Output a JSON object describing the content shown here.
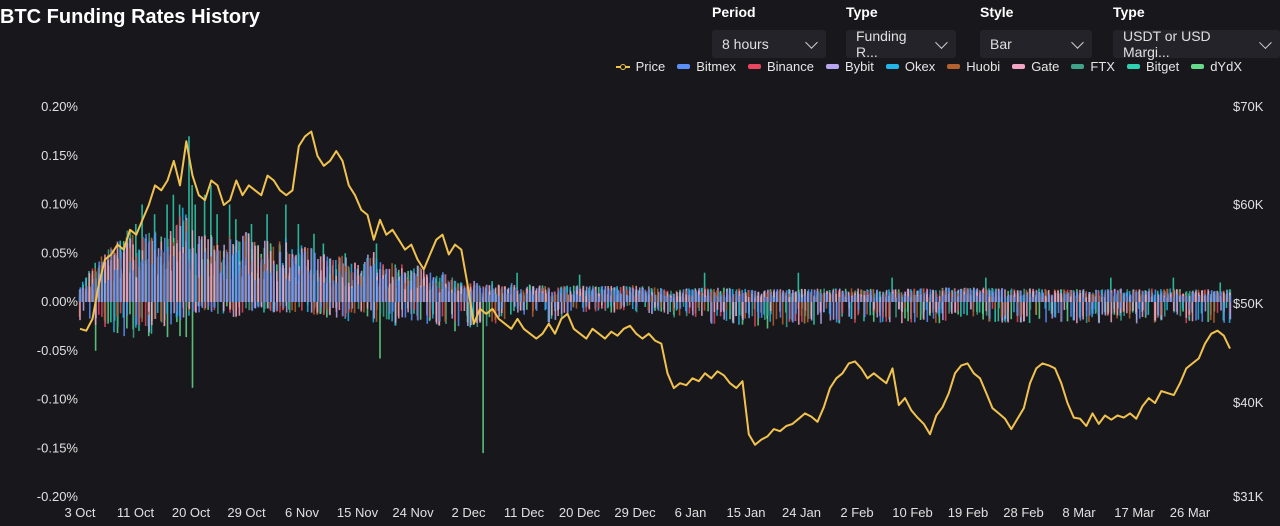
{
  "header": {
    "title": "BTC Funding Rates History"
  },
  "controls": [
    {
      "label": "Period",
      "value": "8 hours"
    },
    {
      "label": "Type",
      "value": "Funding R..."
    },
    {
      "label": "Style",
      "value": "Bar"
    },
    {
      "label": "Type",
      "value": "USDT or USD Margi..."
    }
  ],
  "colors": {
    "price": "#f2c24f",
    "Bitmex": "#5b8ff9",
    "Binance": "#e8475f",
    "Bybit": "#b9a6f0",
    "Okex": "#1fb6e8",
    "Huobi": "#b5602f",
    "Gate": "#f2a5c0",
    "FTX": "#3fa38a",
    "Bitget": "#2ed1b0",
    "dYdX": "#66d98a"
  },
  "chart_data": {
    "type": "bar",
    "title": "BTC Funding Rates History",
    "legend_position": "top-right",
    "grid": false,
    "x_ticks": [
      "3 Oct",
      "11 Oct",
      "20 Oct",
      "29 Oct",
      "6 Nov",
      "15 Nov",
      "24 Nov",
      "2 Dec",
      "11 Dec",
      "20 Dec",
      "29 Dec",
      "6 Jan",
      "15 Jan",
      "24 Jan",
      "2 Feb",
      "10 Feb",
      "19 Feb",
      "28 Feb",
      "8 Mar",
      "17 Mar",
      "26 Mar"
    ],
    "y_left": {
      "ticks": [
        "0.20%",
        "0.15%",
        "0.10%",
        "0.05%",
        "0.00%",
        "-0.05%",
        "-0.10%",
        "-0.15%",
        "-0.20%"
      ],
      "range": [
        -0.2,
        0.2
      ],
      "unit": "%"
    },
    "y_right": {
      "ticks": [
        "$70K",
        "$60K",
        "$50K",
        "$40K",
        "$31K"
      ],
      "range": [
        31000,
        70000
      ]
    },
    "series_names": [
      "Price",
      "Bitmex",
      "Binance",
      "Bybit",
      "Okex",
      "Huobi",
      "Gate",
      "FTX",
      "Bitget",
      "dYdX"
    ],
    "price": {
      "name": "Price",
      "points": [
        [
          0,
          47500
        ],
        [
          2,
          47300
        ],
        [
          4,
          48500
        ],
        [
          6,
          52000
        ],
        [
          8,
          54500
        ],
        [
          10,
          55000
        ],
        [
          12,
          56000
        ],
        [
          14,
          55500
        ],
        [
          16,
          57500
        ],
        [
          18,
          57000
        ],
        [
          20,
          58500
        ],
        [
          22,
          60000
        ],
        [
          24,
          62000
        ],
        [
          26,
          61500
        ],
        [
          28,
          62500
        ],
        [
          30,
          64500
        ],
        [
          32,
          62000
        ],
        [
          34,
          66500
        ],
        [
          36,
          63000
        ],
        [
          38,
          61000
        ],
        [
          40,
          60500
        ],
        [
          42,
          62500
        ],
        [
          44,
          62000
        ],
        [
          46,
          60000
        ],
        [
          48,
          60500
        ],
        [
          50,
          62500
        ],
        [
          52,
          61000
        ],
        [
          54,
          62000
        ],
        [
          56,
          61500
        ],
        [
          58,
          61000
        ],
        [
          60,
          63000
        ],
        [
          62,
          62500
        ],
        [
          64,
          61500
        ],
        [
          66,
          61000
        ],
        [
          68,
          61500
        ],
        [
          70,
          66000
        ],
        [
          72,
          67000
        ],
        [
          74,
          67500
        ],
        [
          76,
          65000
        ],
        [
          78,
          64000
        ],
        [
          80,
          64500
        ],
        [
          82,
          65500
        ],
        [
          84,
          64500
        ],
        [
          86,
          62000
        ],
        [
          88,
          61000
        ],
        [
          90,
          59500
        ],
        [
          92,
          59000
        ],
        [
          94,
          56500
        ],
        [
          96,
          58500
        ],
        [
          98,
          57000
        ],
        [
          100,
          57500
        ],
        [
          102,
          56500
        ],
        [
          104,
          55500
        ],
        [
          106,
          56000
        ],
        [
          108,
          54500
        ],
        [
          110,
          53500
        ],
        [
          112,
          55000
        ],
        [
          114,
          56500
        ],
        [
          116,
          57000
        ],
        [
          118,
          55000
        ],
        [
          120,
          56000
        ],
        [
          122,
          55500
        ],
        [
          124,
          52000
        ],
        [
          126,
          48000
        ],
        [
          128,
          49500
        ],
        [
          130,
          49000
        ],
        [
          132,
          49500
        ],
        [
          134,
          48500
        ],
        [
          136,
          48000
        ],
        [
          138,
          47500
        ],
        [
          140,
          48500
        ],
        [
          142,
          47500
        ],
        [
          144,
          47000
        ],
        [
          146,
          46500
        ],
        [
          148,
          47000
        ],
        [
          150,
          48000
        ],
        [
          152,
          47000
        ],
        [
          154,
          48500
        ],
        [
          156,
          49000
        ],
        [
          158,
          47500
        ],
        [
          160,
          47000
        ],
        [
          162,
          46500
        ],
        [
          164,
          47500
        ],
        [
          166,
          47000
        ],
        [
          168,
          46500
        ],
        [
          170,
          47200
        ],
        [
          172,
          46800
        ],
        [
          174,
          47500
        ],
        [
          176,
          47800
        ],
        [
          178,
          47000
        ],
        [
          180,
          46500
        ],
        [
          182,
          47000
        ],
        [
          184,
          46300
        ],
        [
          186,
          46000
        ],
        [
          188,
          43000
        ],
        [
          190,
          41500
        ],
        [
          192,
          42000
        ],
        [
          194,
          41800
        ],
        [
          196,
          42500
        ],
        [
          198,
          42200
        ],
        [
          200,
          43000
        ],
        [
          202,
          42500
        ],
        [
          204,
          43200
        ],
        [
          206,
          42800
        ],
        [
          208,
          42000
        ],
        [
          210,
          41500
        ],
        [
          212,
          42200
        ],
        [
          214,
          37000
        ],
        [
          216,
          36000
        ],
        [
          218,
          36500
        ],
        [
          220,
          36800
        ],
        [
          222,
          37500
        ],
        [
          224,
          37300
        ],
        [
          226,
          37800
        ],
        [
          228,
          38000
        ],
        [
          230,
          38500
        ],
        [
          232,
          39000
        ],
        [
          234,
          38700
        ],
        [
          236,
          38200
        ],
        [
          238,
          39600
        ],
        [
          240,
          41500
        ],
        [
          242,
          42500
        ],
        [
          244,
          43000
        ],
        [
          246,
          44000
        ],
        [
          248,
          44200
        ],
        [
          250,
          43500
        ],
        [
          252,
          42500
        ],
        [
          254,
          43000
        ],
        [
          256,
          42500
        ],
        [
          258,
          42000
        ],
        [
          260,
          43500
        ],
        [
          262,
          39800
        ],
        [
          264,
          40500
        ],
        [
          266,
          39300
        ],
        [
          268,
          38600
        ],
        [
          270,
          38000
        ],
        [
          272,
          37000
        ],
        [
          274,
          38800
        ],
        [
          276,
          39600
        ],
        [
          278,
          41000
        ],
        [
          280,
          43000
        ],
        [
          282,
          43800
        ],
        [
          284,
          44000
        ],
        [
          286,
          43000
        ],
        [
          288,
          42500
        ],
        [
          290,
          41000
        ],
        [
          292,
          39500
        ],
        [
          294,
          39000
        ],
        [
          296,
          38500
        ],
        [
          298,
          37500
        ],
        [
          300,
          38500
        ],
        [
          302,
          39500
        ],
        [
          304,
          42000
        ],
        [
          306,
          43500
        ],
        [
          308,
          44000
        ],
        [
          310,
          43800
        ],
        [
          312,
          43500
        ],
        [
          314,
          42000
        ],
        [
          316,
          40000
        ],
        [
          318,
          38600
        ],
        [
          320,
          38500
        ],
        [
          322,
          37800
        ],
        [
          324,
          39000
        ],
        [
          326,
          38000
        ],
        [
          328,
          38800
        ],
        [
          330,
          38400
        ],
        [
          332,
          38800
        ],
        [
          334,
          38600
        ],
        [
          336,
          39000
        ],
        [
          338,
          38500
        ],
        [
          340,
          39700
        ],
        [
          342,
          40500
        ],
        [
          344,
          40000
        ],
        [
          346,
          41200
        ],
        [
          348,
          41000
        ],
        [
          350,
          40800
        ],
        [
          352,
          42000
        ],
        [
          354,
          43500
        ],
        [
          356,
          44000
        ],
        [
          358,
          44500
        ],
        [
          360,
          46000
        ],
        [
          362,
          47000
        ],
        [
          364,
          47300
        ],
        [
          366,
          46800
        ],
        [
          368,
          45500
        ]
      ]
    },
    "funding_rates": {
      "unit": "%",
      "note_exchanges": [
        "Bitmex",
        "Binance",
        "Bybit",
        "Okex",
        "Huobi",
        "Gate",
        "FTX",
        "Bitget",
        "dYdX"
      ],
      "periods": 369,
      "pos_envelope": [
        [
          0,
          0.015
        ],
        [
          3,
          0.03
        ],
        [
          6,
          0.04
        ],
        [
          9,
          0.05
        ],
        [
          12,
          0.06
        ],
        [
          15,
          0.07
        ],
        [
          18,
          0.06
        ],
        [
          21,
          0.065
        ],
        [
          24,
          0.075
        ],
        [
          27,
          0.06
        ],
        [
          30,
          0.07
        ],
        [
          33,
          0.09
        ],
        [
          36,
          0.07
        ],
        [
          39,
          0.065
        ],
        [
          42,
          0.07
        ],
        [
          45,
          0.05
        ],
        [
          48,
          0.065
        ],
        [
          51,
          0.06
        ],
        [
          54,
          0.07
        ],
        [
          57,
          0.055
        ],
        [
          60,
          0.06
        ],
        [
          63,
          0.055
        ],
        [
          66,
          0.06
        ],
        [
          69,
          0.05
        ],
        [
          72,
          0.055
        ],
        [
          75,
          0.05
        ],
        [
          78,
          0.045
        ],
        [
          81,
          0.04
        ],
        [
          84,
          0.045
        ],
        [
          87,
          0.04
        ],
        [
          90,
          0.035
        ],
        [
          93,
          0.05
        ],
        [
          96,
          0.04
        ],
        [
          99,
          0.035
        ],
        [
          102,
          0.04
        ],
        [
          105,
          0.03
        ],
        [
          108,
          0.035
        ],
        [
          111,
          0.03
        ],
        [
          114,
          0.025
        ],
        [
          117,
          0.03
        ],
        [
          120,
          0.02
        ],
        [
          123,
          0.018
        ],
        [
          126,
          0.02
        ],
        [
          129,
          0.015
        ],
        [
          132,
          0.02
        ],
        [
          135,
          0.015
        ],
        [
          138,
          0.018
        ],
        [
          141,
          0.015
        ],
        [
          144,
          0.017
        ],
        [
          150,
          0.015
        ],
        [
          160,
          0.016
        ],
        [
          170,
          0.015
        ],
        [
          180,
          0.016
        ],
        [
          190,
          0.012
        ],
        [
          200,
          0.014
        ],
        [
          220,
          0.012
        ],
        [
          240,
          0.013
        ],
        [
          260,
          0.012
        ],
        [
          280,
          0.014
        ],
        [
          300,
          0.013
        ],
        [
          320,
          0.012
        ],
        [
          340,
          0.013
        ],
        [
          368,
          0.012
        ]
      ],
      "neg_envelope": [
        [
          0,
          -0.02
        ],
        [
          10,
          -0.03
        ],
        [
          20,
          -0.035
        ],
        [
          30,
          -0.02
        ],
        [
          40,
          -0.01
        ],
        [
          50,
          -0.015
        ],
        [
          60,
          -0.01
        ],
        [
          70,
          -0.01
        ],
        [
          80,
          -0.015
        ],
        [
          90,
          -0.02
        ],
        [
          100,
          -0.025
        ],
        [
          110,
          -0.02
        ],
        [
          120,
          -0.025
        ],
        [
          130,
          -0.025
        ],
        [
          140,
          -0.01
        ],
        [
          150,
          -0.02
        ],
        [
          160,
          -0.01
        ],
        [
          170,
          -0.01
        ],
        [
          180,
          -0.01
        ],
        [
          190,
          -0.015
        ],
        [
          200,
          -0.02
        ],
        [
          220,
          -0.025
        ],
        [
          240,
          -0.02
        ],
        [
          260,
          -0.02
        ],
        [
          280,
          -0.02
        ],
        [
          300,
          -0.02
        ],
        [
          320,
          -0.02
        ],
        [
          340,
          -0.02
        ],
        [
          368,
          -0.02
        ]
      ],
      "spikes": [
        [
          35,
          0.17
        ],
        [
          36,
          0.12
        ],
        [
          37,
          0.1
        ],
        [
          40,
          0.11
        ],
        [
          42,
          0.12
        ],
        [
          44,
          0.09
        ],
        [
          48,
          0.1
        ],
        [
          60,
          0.09
        ],
        [
          66,
          0.1
        ],
        [
          70,
          0.08
        ],
        [
          78,
          0.06
        ],
        [
          85,
          0.05
        ],
        [
          92,
          0.045
        ],
        [
          110,
          0.02
        ],
        [
          20,
          0.1
        ],
        [
          24,
          0.09
        ],
        [
          28,
          0.1
        ],
        [
          18,
          0.08
        ],
        [
          30,
          0.11
        ],
        [
          32,
          0.1
        ],
        [
          50,
          0.085
        ],
        [
          55,
          0.08
        ],
        [
          75,
          0.07
        ],
        [
          95,
          0.06
        ],
        [
          140,
          0.03
        ],
        [
          160,
          0.028
        ],
        [
          200,
          0.03
        ],
        [
          230,
          0.03
        ],
        [
          260,
          0.025
        ],
        [
          290,
          0.025
        ],
        [
          330,
          0.025
        ],
        [
          350,
          0.025
        ],
        [
          365,
          0.02
        ]
      ],
      "neg_spikes": [
        [
          36,
          -0.088
        ],
        [
          96,
          -0.058
        ],
        [
          129,
          -0.155
        ],
        [
          120,
          -0.03
        ],
        [
          32,
          -0.035
        ],
        [
          22,
          -0.035
        ],
        [
          28,
          -0.036
        ],
        [
          34,
          -0.036
        ],
        [
          5,
          -0.05
        ]
      ]
    }
  }
}
